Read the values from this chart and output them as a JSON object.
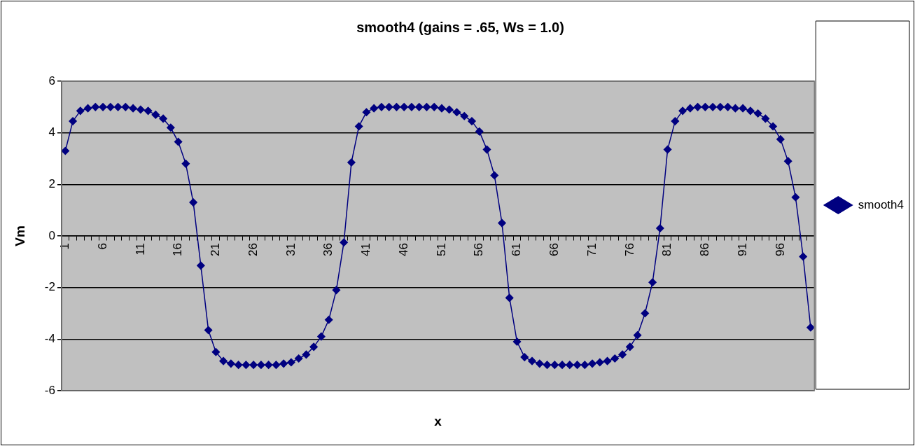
{
  "chart_data": {
    "type": "line",
    "title": "smooth4 (gains = .65, Ws = 1.0)",
    "xlabel": "x",
    "ylabel": "Vm",
    "categories": [
      "1",
      null,
      null,
      null,
      null,
      "6",
      null,
      null,
      null,
      null,
      "11",
      null,
      null,
      null,
      null,
      "16",
      null,
      null,
      null,
      null,
      "21",
      null,
      null,
      null,
      null,
      "26",
      null,
      null,
      null,
      null,
      "31",
      null,
      null,
      null,
      null,
      "36",
      null,
      null,
      null,
      null,
      "41",
      null,
      null,
      null,
      null,
      "46",
      null,
      null,
      null,
      null,
      "51",
      null,
      null,
      null,
      null,
      "56",
      null,
      null,
      null,
      null,
      "61",
      null,
      null,
      null,
      null,
      "66",
      null,
      null,
      null,
      null,
      "71",
      null,
      null,
      null,
      null,
      "76",
      null,
      null,
      null,
      null,
      "81",
      null,
      null,
      null,
      null,
      "86",
      null,
      null,
      null,
      null,
      "91",
      null,
      null,
      null,
      null,
      "96",
      null,
      null,
      null,
      null
    ],
    "series": [
      {
        "name": "smooth4",
        "color": "#000080",
        "values": [
          3.3,
          4.45,
          4.85,
          4.95,
          5,
          5,
          5,
          5,
          5,
          4.95,
          4.9,
          4.85,
          4.7,
          4.55,
          4.2,
          3.65,
          2.8,
          1.3,
          -1.15,
          -3.65,
          -4.5,
          -4.85,
          -4.95,
          -5,
          -5,
          -5,
          -5,
          -5,
          -5,
          -4.95,
          -4.9,
          -4.75,
          -4.6,
          -4.3,
          -3.9,
          -3.25,
          -2.1,
          -0.25,
          2.85,
          4.25,
          4.8,
          4.95,
          5,
          5,
          5,
          5,
          5,
          5,
          5,
          5,
          4.95,
          4.9,
          4.8,
          4.65,
          4.45,
          4.05,
          3.35,
          2.35,
          0.5,
          -2.4,
          -4.1,
          -4.7,
          -4.85,
          -4.95,
          -5,
          -5,
          -5,
          -5,
          -5,
          -5,
          -4.95,
          -4.9,
          -4.85,
          -4.75,
          -4.6,
          -4.3,
          -3.85,
          -3.0,
          -1.8,
          0.3,
          3.35,
          4.45,
          4.85,
          4.95,
          5,
          5,
          5,
          5,
          5,
          4.95,
          4.95,
          4.85,
          4.75,
          4.55,
          4.25,
          3.75,
          2.9,
          1.5,
          -0.8,
          -3.55
        ]
      }
    ],
    "ylim": [
      -6,
      6
    ],
    "yticks": [
      -6,
      -4,
      -2,
      0,
      2,
      4,
      6
    ],
    "grid": "y",
    "legend": "right",
    "marker": "diamond"
  }
}
